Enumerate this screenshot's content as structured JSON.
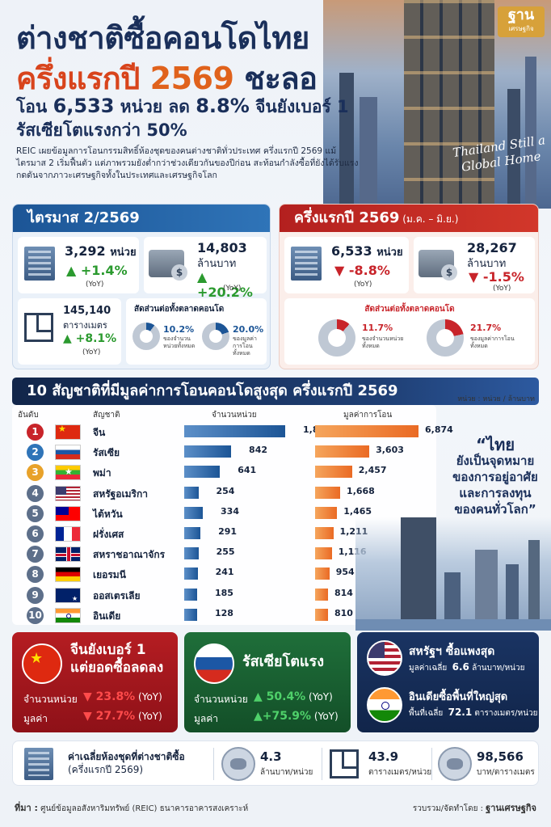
{
  "header": {
    "title_line1": "ต่างชาติซื้อคอนโดไทย",
    "title_line2_a": "ครึ่งแรกปี ",
    "title_line2_num": "2569",
    "title_line2_b": " ชะลอ",
    "subtitle1_a": "โอน ",
    "subtitle1_num": "6,533",
    "subtitle1_b": " หน่วย ลด ",
    "subtitle1_pct": "8.8%",
    "subtitle1_c": " จีนยังเบอร์ 1",
    "subtitle2": "รัสเซียโตแรงกว่า 50%",
    "intro": "REIC เผยข้อมูลการโอนกรรมสิทธิ์ห้องชุดของคนต่างชาติทั่วประเทศ ครึ่งแรกปี 2569 แม้ไตรมาส 2 เริ่มฟื้นตัว แต่ภาพรวมยังต่ำกว่าช่วงเดียวกันของปีก่อน สะท้อนกำลังซื้อที่ยังได้รับแรงกดดันจากภาวะเศรษฐกิจทั้งในประเทศและเศรษฐกิจโลก",
    "brand_big": "ฐาน",
    "brand_small": "เศรษฐกิจ",
    "hero_script": "Thailand Still a Global Home"
  },
  "quarter": {
    "title": "ไตรมาส 2/2569",
    "units_value": "3,292",
    "units_label": "หน่วย",
    "units_change": "▲ +1.4%",
    "units_yoy": "(YoY)",
    "value_value": "14,803",
    "value_label": "ล้านบาท",
    "value_change": "▲ +20.2%",
    "value_yoy": "(YoY)",
    "area_value": "145,140",
    "area_label": "ตารางเมตร",
    "area_change": "▲ +8.1%",
    "area_yoy": "(YoY)",
    "share_title": "สัดส่วนต่อทั้งตลาดคอนโด",
    "share_units_pct": "10.2%",
    "share_units_desc": "ของจำนวนหน่วยทั้งหมด",
    "share_value_pct": "20.0%",
    "share_value_desc": "ของมูลค่าการโอนทั้งหมด",
    "share_units_fraction": 0.102,
    "share_value_fraction": 0.2
  },
  "half": {
    "title": "ครึ่งแรกปี 2569",
    "title_small": " (ม.ค. – มิ.ย.)",
    "units_value": "6,533",
    "units_label": "หน่วย",
    "units_change": "▼ -8.8%",
    "units_yoy": "(YoY)",
    "value_value": "28,267",
    "value_label": "ล้านบาท",
    "value_change": "▼ -1.5%",
    "value_yoy": "(YoY)",
    "share_title": "สัดส่วนต่อทั้งตลาดคอนโด",
    "share_units_pct": "11.7%",
    "share_units_desc": "ของจำนวนหน่วยทั้งหมด",
    "share_value_pct": "21.7%",
    "share_value_desc": "ของมูลค่าการโอนทั้งหมด",
    "share_units_fraction": 0.117,
    "share_value_fraction": 0.217
  },
  "top10": {
    "title": "10 สัญชาติที่มีมูลค่าการโอนคอนโดสูงสุด ครึ่งแรกปี 2569",
    "unit_note": "หน่วย : หน่วย / ล้านบาท",
    "col_rank": "อันดับ",
    "col_country": "สัญชาติ",
    "col_units": "จำนวนหน่วย",
    "col_value": "มูลค่าการโอน",
    "rank_colors": [
      "#c8242a",
      "#2f74b8",
      "#e8a22a",
      "#5d6f8a",
      "#5d6f8a",
      "#5d6f8a",
      "#5d6f8a",
      "#5d6f8a",
      "#5d6f8a",
      "#5d6f8a"
    ],
    "rows": [
      {
        "rank": "1",
        "country": "จีน",
        "units": "1,813",
        "value": "6,874"
      },
      {
        "rank": "2",
        "country": "รัสเซีย",
        "units": "842",
        "value": "3,603"
      },
      {
        "rank": "3",
        "country": "พม่า",
        "units": "641",
        "value": "2,457"
      },
      {
        "rank": "4",
        "country": "สหรัฐอเมริกา",
        "units": "254",
        "value": "1,668"
      },
      {
        "rank": "5",
        "country": "ไต้หวัน",
        "units": "334",
        "value": "1,465"
      },
      {
        "rank": "6",
        "country": "ฝรั่งเศส",
        "units": "291",
        "value": "1,211"
      },
      {
        "rank": "7",
        "country": "สหราชอาณาจักร",
        "units": "255",
        "value": "1,116"
      },
      {
        "rank": "8",
        "country": "เยอรมนี",
        "units": "241",
        "value": "954"
      },
      {
        "rank": "9",
        "country": "ออสเตรเลีย",
        "units": "185",
        "value": "814"
      },
      {
        "rank": "10",
        "country": "อินเดีย",
        "units": "128",
        "value": "810"
      }
    ]
  },
  "chart_data": {
    "type": "bar",
    "categories": [
      "จีน",
      "รัสเซีย",
      "พม่า",
      "สหรัฐอเมริกา",
      "ไต้หวัน",
      "ฝรั่งเศส",
      "สหราชอาณาจักร",
      "เยอรมนี",
      "ออสเตรเลีย",
      "อินเดีย"
    ],
    "series": [
      {
        "name": "จำนวนหน่วย",
        "values": [
          1813,
          842,
          641,
          254,
          334,
          291,
          255,
          241,
          185,
          128
        ]
      },
      {
        "name": "มูลค่าการโอน",
        "values": [
          6874,
          3603,
          2457,
          1668,
          1465,
          1211,
          1116,
          954,
          814,
          810
        ]
      }
    ],
    "title": "10 สัญชาติที่มีมูลค่าการโอนคอนโดสูงสุด ครึ่งแรกปี 2569"
  },
  "quote": {
    "line1": "“ไทย",
    "line2": "ยังเป็นจุดหมาย",
    "line3": "ของการอยู่อาศัย",
    "line4": "และการลงทุน",
    "line5": "ของคนทั่วโลก”"
  },
  "china_card": {
    "title1": "จีนยังเบอร์ 1",
    "title2": "แต่ยอดซื้อลดลง",
    "units_label": "จำนวนหน่วย",
    "units_change": "▼ 23.8%",
    "units_yoy": "(YoY)",
    "value_label": "มูลค่า",
    "value_change": "▼ 27.7%",
    "value_yoy": "(YoY)"
  },
  "russia_card": {
    "title": "รัสเซียโตแรง",
    "units_label": "จำนวนหน่วย",
    "units_change": "▲ 50.4%",
    "units_yoy": "(YoY)",
    "value_label": "มูลค่า",
    "value_change": "▲+75.9%",
    "value_yoy": "(YoY)"
  },
  "us_india_card": {
    "us_title": "สหรัฐฯ ซื้อแพงสุด",
    "us_label": "มูลค่าเฉลี่ย",
    "us_value": "6.6",
    "us_unit": "ล้านบาท/หน่วย",
    "india_title": "อินเดียซื้อพื้นที่ใหญ่สุด",
    "india_label": "พื้นที่เฉลี่ย",
    "india_value": "72.1",
    "india_unit": "ตารางเมตร/หน่วย"
  },
  "summary": {
    "label": "ค่าเฉลี่ยห้องชุดที่ต่างชาติซื้อ",
    "label_sub": "(ครึ่งแรกปี 2569)",
    "price_value": "4.3",
    "price_unit": "ล้านบาท/หน่วย",
    "area_value": "43.9",
    "area_unit": "ตารางเมตร/หน่วย",
    "sqm_value": "98,566",
    "sqm_unit": "บาท/ตารางเมตร"
  },
  "footer": {
    "source_label": "ที่มา :",
    "source_text": " ศูนย์ข้อมูลอสังหาริมทรัพย์ (REIC) ธนาคารอาคารสงเคราะห์",
    "credit_label": "รวบรวม/จัดทำโดย : ",
    "credit_name": "ฐานเศรษฐกิจ"
  },
  "colors": {
    "navy": "#1a2f5a",
    "orange_red": "#d8441c",
    "blue": "#1c5596",
    "red": "#c8242a",
    "green": "#2b9a2f"
  }
}
